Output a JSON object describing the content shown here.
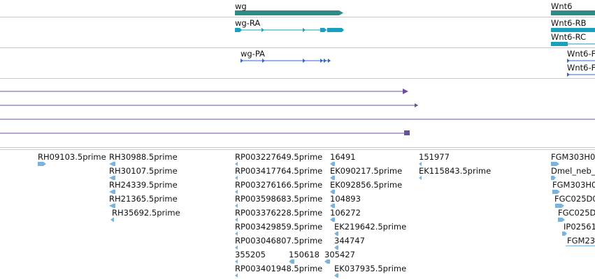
{
  "colors": {
    "gene": "#2e8b87",
    "transcript_a": "#1aa0bf",
    "transcript_b": "#2e67c8",
    "purple": "#6a4ea0",
    "est": "#7ab4de",
    "divider": "#c8c8c8"
  },
  "genes": {
    "wg": "wg",
    "wnt6": "Wnt6"
  },
  "transcripts": {
    "wg_ra": "wg-RA",
    "wnt6_rb": "Wnt6-RB",
    "wnt6_rc": "Wnt6-RC",
    "wg_pa": "wg-PA",
    "wnt6_pa1": "Wnt6-F",
    "wnt6_pa2": "Wnt6-F"
  },
  "ests": [
    {
      "name": "RH09103.5prime",
      "dir": "right"
    },
    {
      "name": "RH30988.5prime",
      "dir": "left"
    },
    {
      "name": "RH30107.5prime",
      "dir": "left"
    },
    {
      "name": "RH24339.5prime",
      "dir": "left"
    },
    {
      "name": "RH21365.5prime",
      "dir": "left"
    },
    {
      "name": "RH35692.5prime",
      "dir": "left"
    },
    {
      "name": "RP003227649.5prime",
      "dir": "left"
    },
    {
      "name": "RP003417764.5prime",
      "dir": "left"
    },
    {
      "name": "RP003276166.5prime",
      "dir": "left"
    },
    {
      "name": "RP003598683.5prime",
      "dir": "left"
    },
    {
      "name": "RP003376228.5prime",
      "dir": "left"
    },
    {
      "name": "RP003429859.5prime",
      "dir": "left"
    },
    {
      "name": "RP003046807.5prime",
      "dir": "left"
    },
    {
      "name": "355205",
      "dir": "left"
    },
    {
      "name": "150618",
      "dir": "left"
    },
    {
      "name": "305427",
      "dir": "left"
    },
    {
      "name": "RP003401948.5prime",
      "dir": "left"
    },
    {
      "name": "16491",
      "dir": "left"
    },
    {
      "name": "EK090217.5prime",
      "dir": "left"
    },
    {
      "name": "EK092856.5prime",
      "dir": "left"
    },
    {
      "name": "104893",
      "dir": "left"
    },
    {
      "name": "106272",
      "dir": "left"
    },
    {
      "name": "EK219642.5prime",
      "dir": "left"
    },
    {
      "name": "344747",
      "dir": "left"
    },
    {
      "name": "EK037935.5prime",
      "dir": "left"
    },
    {
      "name": "151977",
      "dir": "left"
    },
    {
      "name": "EK115843.5prime",
      "dir": "left"
    },
    {
      "name": "FGM303H0",
      "dir": "right"
    },
    {
      "name": "Dmel_neb_",
      "dir": "right"
    },
    {
      "name": "FGM303H0",
      "dir": "right"
    },
    {
      "name": "FGC025D0",
      "dir": "right"
    },
    {
      "name": "FGC025D",
      "dir": "right"
    },
    {
      "name": "IP02561",
      "dir": "right"
    },
    {
      "name": "FGM23",
      "dir": "right"
    }
  ]
}
